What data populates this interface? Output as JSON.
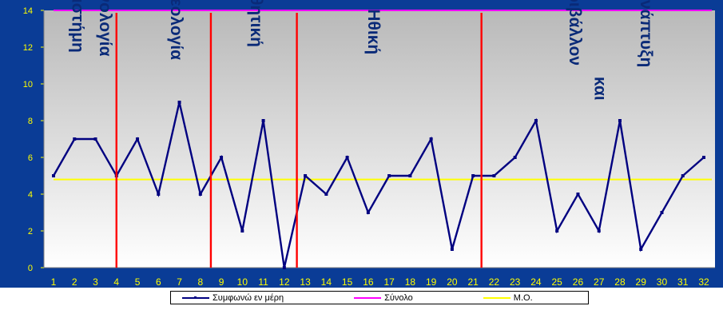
{
  "chart_data": {
    "type": "line",
    "title": "",
    "xlabel": "",
    "ylabel": "",
    "ylim": [
      0,
      14
    ],
    "yticks": [
      0,
      2,
      4,
      6,
      8,
      10,
      12,
      14
    ],
    "grid": false,
    "legend_position": "bottom",
    "x": [
      "1",
      "2",
      "3",
      "4",
      "5",
      "6",
      "7",
      "8",
      "9",
      "10",
      "11",
      "12",
      "13",
      "14",
      "15",
      "16",
      "17",
      "18",
      "19",
      "20",
      "21",
      "22",
      "23",
      "24",
      "25",
      "26",
      "27",
      "28",
      "29",
      "30",
      "31",
      "32"
    ],
    "series": [
      {
        "name": "Συμφωνώ εν μέρη",
        "color": "#000080",
        "values": [
          5,
          7,
          7,
          5,
          7,
          4,
          9,
          4,
          6,
          2,
          8,
          0,
          5,
          4,
          6,
          3,
          5,
          5,
          7,
          1,
          5,
          5,
          6,
          8,
          2,
          4,
          2,
          8,
          1,
          3,
          5,
          6
        ]
      },
      {
        "name": "Σύνολο",
        "color": "#ff00ff",
        "values": [
          14,
          14,
          14,
          14,
          14,
          14,
          14,
          14,
          14,
          14,
          14,
          14,
          14,
          14,
          14,
          14,
          14,
          14,
          14,
          14,
          14,
          14,
          14,
          14,
          14,
          14,
          14,
          14,
          14,
          14,
          14,
          14
        ]
      },
      {
        "name": "Μ.Ο.",
        "color": "#ffff00",
        "values": [
          4.8,
          4.8,
          4.8,
          4.8,
          4.8,
          4.8,
          4.8,
          4.8,
          4.8,
          4.8,
          4.8,
          4.8,
          4.8,
          4.8,
          4.8,
          4.8,
          4.8,
          4.8,
          4.8,
          4.8,
          4.8,
          4.8,
          4.8,
          4.8,
          4.8,
          4.8,
          4.8,
          4.8,
          4.8,
          4.8,
          4.8,
          4.8
        ]
      }
    ],
    "separators": [
      {
        "x": 4,
        "color": "#ff0000"
      },
      {
        "x": 8.5,
        "color": "#ff0000"
      },
      {
        "x": 12.6,
        "color": "#ff0000"
      },
      {
        "x": 21.4,
        "color": "#ff0000"
      }
    ],
    "annotations": [
      {
        "text": "Επιστήμη",
        "x": 1.9,
        "y": 11.7
      },
      {
        "text": "τεχνολογία",
        "x": 3.2,
        "y": 11.5
      },
      {
        "text": "Θεολογία",
        "x": 6.6,
        "y": 11.3
      },
      {
        "text": "Αισθητική",
        "x": 10.4,
        "y": 12.0
      },
      {
        "text": "Ηθική",
        "x": 16.0,
        "y": 11.6
      },
      {
        "text": "Περιβάλλον",
        "x": 25.6,
        "y": 11.0
      },
      {
        "text": "και",
        "x": 26.8,
        "y": 9.1
      },
      {
        "text": "Ανάπτυξη",
        "x": 29.0,
        "y": 10.9
      }
    ],
    "colors": {
      "plot_bg_top": "#b9b9b9",
      "plot_bg_bottom": "#ffffff",
      "frame_bg": "#0a3c96",
      "axis_text": "#ffff00",
      "annotation_text": "#0a2a78"
    }
  }
}
